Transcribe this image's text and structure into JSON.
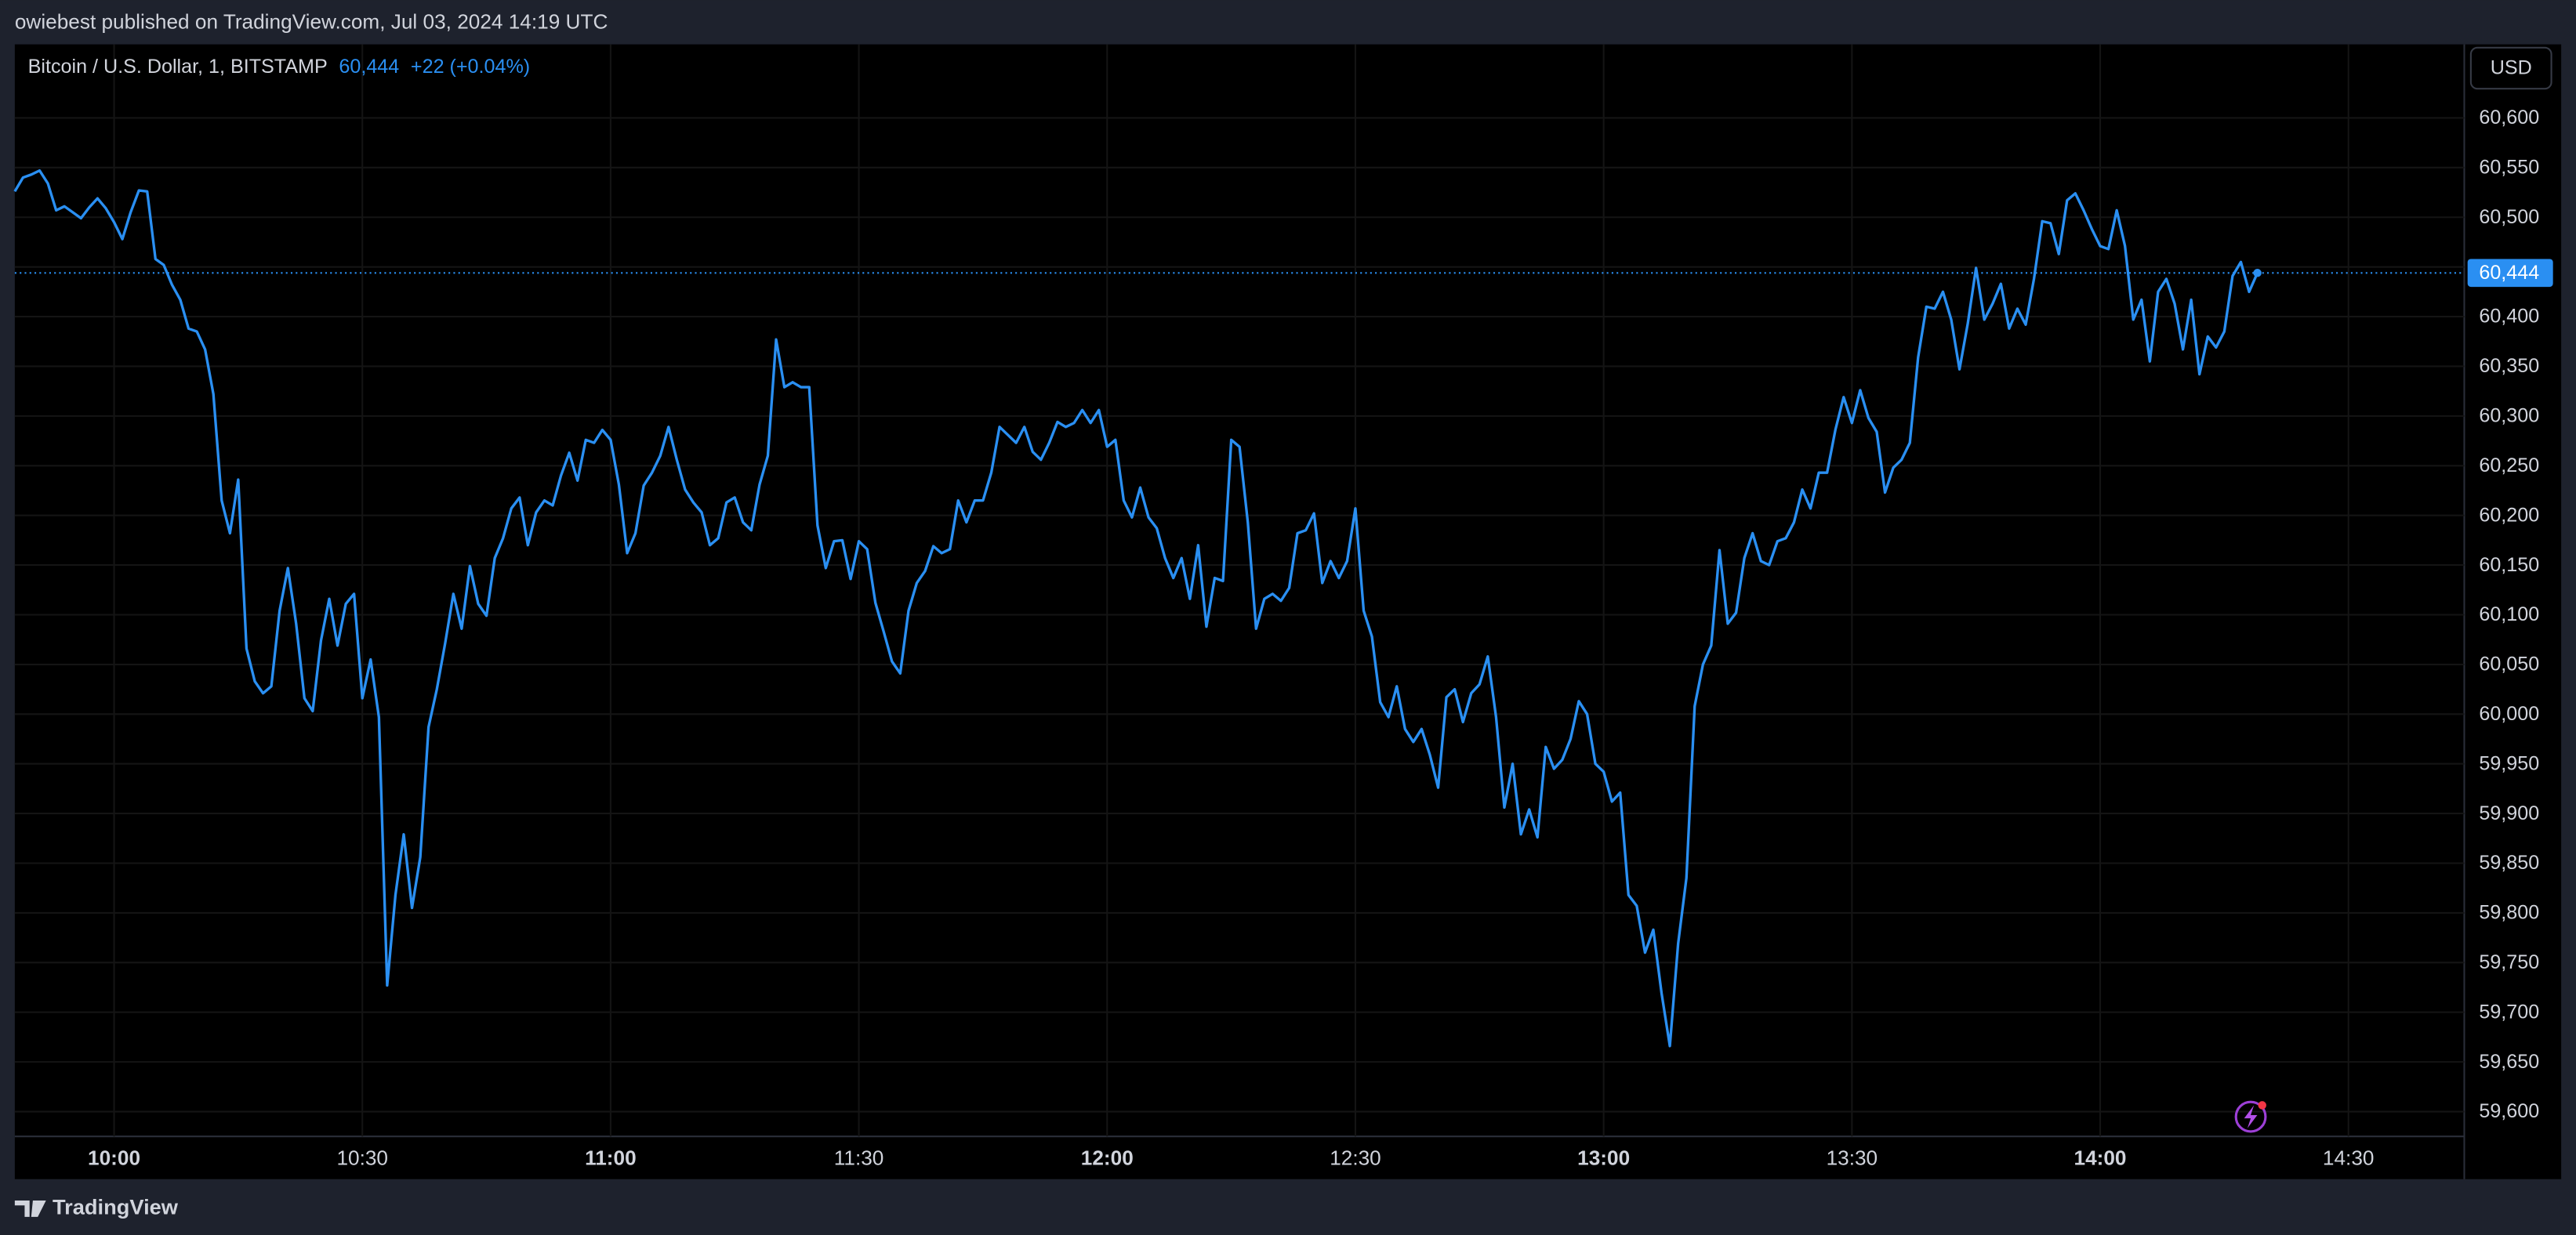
{
  "header": {
    "publisher_line": "owiebest published on TradingView.com, Jul 03, 2024 14:19 UTC"
  },
  "chart_data": {
    "type": "line",
    "title": "Bitcoin / U.S. Dollar, 1, BITSTAMP",
    "last_price": {
      "value": 60444,
      "label": "60,444"
    },
    "change": "+22 (+0.04%)",
    "currency": "USD",
    "color": "#2a8ff2",
    "x": [
      "09:48",
      "09:49",
      "09:50",
      "09:51",
      "09:52",
      "09:53",
      "09:54",
      "09:55",
      "09:56",
      "09:57",
      "09:58",
      "09:59",
      "10:00",
      "10:01",
      "10:02",
      "10:03",
      "10:04",
      "10:05",
      "10:06",
      "10:07",
      "10:08",
      "10:09",
      "10:10",
      "10:11",
      "10:12",
      "10:13",
      "10:14",
      "10:15",
      "10:16",
      "10:17",
      "10:18",
      "10:19",
      "10:20",
      "10:21",
      "10:22",
      "10:23",
      "10:24",
      "10:25",
      "10:26",
      "10:27",
      "10:28",
      "10:29",
      "10:30",
      "10:31",
      "10:32",
      "10:33",
      "10:34",
      "10:35",
      "10:36",
      "10:37",
      "10:38",
      "10:39",
      "10:40",
      "10:41",
      "10:42",
      "10:43",
      "10:44",
      "10:45",
      "10:46",
      "10:47",
      "10:48",
      "10:49",
      "10:50",
      "10:51",
      "10:52",
      "10:53",
      "10:54",
      "10:55",
      "10:56",
      "10:57",
      "10:58",
      "10:59",
      "11:00",
      "11:01",
      "11:02",
      "11:03",
      "11:04",
      "11:05",
      "11:06",
      "11:07",
      "11:08",
      "11:09",
      "11:10",
      "11:11",
      "11:12",
      "11:13",
      "11:14",
      "11:15",
      "11:16",
      "11:17",
      "11:18",
      "11:19",
      "11:20",
      "11:21",
      "11:22",
      "11:23",
      "11:24",
      "11:25",
      "11:26",
      "11:27",
      "11:28",
      "11:29",
      "11:30",
      "11:31",
      "11:32",
      "11:33",
      "11:34",
      "11:35",
      "11:36",
      "11:37",
      "11:38",
      "11:39",
      "11:40",
      "11:41",
      "11:42",
      "11:43",
      "11:44",
      "11:45",
      "11:46",
      "11:47",
      "11:48",
      "11:49",
      "11:50",
      "11:51",
      "11:52",
      "11:53",
      "11:54",
      "11:55",
      "11:56",
      "11:57",
      "11:58",
      "11:59",
      "12:00",
      "12:01",
      "12:02",
      "12:03",
      "12:04",
      "12:05",
      "12:06",
      "12:07",
      "12:08",
      "12:09",
      "12:10",
      "12:11",
      "12:12",
      "12:13",
      "12:14",
      "12:15",
      "12:16",
      "12:17",
      "12:18",
      "12:19",
      "12:20",
      "12:21",
      "12:22",
      "12:23",
      "12:24",
      "12:25",
      "12:26",
      "12:27",
      "12:28",
      "12:29",
      "12:30",
      "12:31",
      "12:32",
      "12:33",
      "12:34",
      "12:35",
      "12:36",
      "12:37",
      "12:38",
      "12:39",
      "12:40",
      "12:41",
      "12:42",
      "12:43",
      "12:44",
      "12:45",
      "12:46",
      "12:47",
      "12:48",
      "12:49",
      "12:50",
      "12:51",
      "12:52",
      "12:53",
      "12:54",
      "12:55",
      "12:56",
      "12:57",
      "12:58",
      "12:59",
      "13:00",
      "13:01",
      "13:02",
      "13:03",
      "13:04",
      "13:05",
      "13:06",
      "13:07",
      "13:08",
      "13:09",
      "13:10",
      "13:11",
      "13:12",
      "13:13",
      "13:14",
      "13:15",
      "13:16",
      "13:17",
      "13:18",
      "13:19",
      "13:20",
      "13:21",
      "13:22",
      "13:23",
      "13:24",
      "13:25",
      "13:26",
      "13:27",
      "13:28",
      "13:29",
      "13:30",
      "13:31",
      "13:32",
      "13:33",
      "13:34",
      "13:35",
      "13:36",
      "13:37",
      "13:38",
      "13:39",
      "13:40",
      "13:41",
      "13:42",
      "13:43",
      "13:44",
      "13:45",
      "13:46",
      "13:47",
      "13:48",
      "13:49",
      "13:50",
      "13:51",
      "13:52",
      "13:53",
      "13:54",
      "13:55",
      "13:56",
      "13:57",
      "13:58",
      "13:59",
      "14:00",
      "14:01",
      "14:02",
      "14:03",
      "14:04",
      "14:05",
      "14:06",
      "14:07",
      "14:08",
      "14:09",
      "14:10",
      "14:11",
      "14:12",
      "14:13",
      "14:14",
      "14:15",
      "14:16",
      "14:17",
      "14:18",
      "14:19"
    ],
    "values": [
      60526,
      60540,
      60543,
      60547,
      60534,
      60507,
      60511,
      60505,
      60499,
      60510,
      60519,
      60509,
      60495,
      60478,
      60505,
      60527,
      60526,
      60458,
      60452,
      60432,
      60417,
      60388,
      60385,
      60367,
      60322,
      60215,
      60182,
      60236,
      60066,
      60033,
      60021,
      60028,
      60104,
      60147,
      60091,
      60016,
      60003,
      60074,
      60116,
      60069,
      60111,
      60121,
      60016,
      60055,
      59997,
      59727,
      59818,
      59879,
      59805,
      59856,
      59987,
      60025,
      60071,
      60121,
      60086,
      60149,
      60111,
      60099,
      60157,
      60177,
      60207,
      60218,
      60170,
      60203,
      60215,
      60210,
      60240,
      60263,
      60235,
      60276,
      60273,
      60286,
      60276,
      60231,
      60162,
      60182,
      60230,
      60243,
      60260,
      60289,
      60256,
      60226,
      60213,
      60203,
      60170,
      60177,
      60213,
      60218,
      60193,
      60185,
      60231,
      60260,
      60377,
      60329,
      60334,
      60329,
      60329,
      60190,
      60147,
      60174,
      60175,
      60136,
      60174,
      60166,
      60112,
      60083,
      60053,
      60041,
      60104,
      60132,
      60144,
      60169,
      60162,
      60166,
      60215,
      60193,
      60215,
      60215,
      60243,
      60289,
      60281,
      60273,
      60289,
      60264,
      60256,
      60273,
      60294,
      60289,
      60293,
      60306,
      60293,
      60306,
      60269,
      60276,
      60215,
      60198,
      60228,
      60198,
      60187,
      60157,
      60137,
      60157,
      60116,
      60170,
      60088,
      60137,
      60134,
      60276,
      60269,
      60193,
      60086,
      60116,
      60121,
      60114,
      60127,
      60182,
      60185,
      60202,
      60132,
      60154,
      60137,
      60154,
      60207,
      60104,
      60078,
      60012,
      59997,
      60028,
      59985,
      59972,
      59985,
      59959,
      59926,
      60017,
      60025,
      59992,
      60021,
      60030,
      60058,
      59997,
      59906,
      59950,
      59879,
      59904,
      59876,
      59967,
      59945,
      59954,
      59975,
      60013,
      60000,
      59950,
      59942,
      59912,
      59921,
      59818,
      59807,
      59760,
      59783,
      59719,
      59666,
      59769,
      59835,
      60008,
      60050,
      60069,
      60165,
      60091,
      60102,
      60157,
      60182,
      60154,
      60150,
      60174,
      60177,
      60193,
      60226,
      60207,
      60243,
      60243,
      60286,
      60319,
      60293,
      60326,
      60298,
      60284,
      60223,
      60248,
      60256,
      60273,
      60359,
      60410,
      60408,
      60425,
      60397,
      60347,
      60393,
      60449,
      60397,
      60413,
      60433,
      60388,
      60408,
      60392,
      60438,
      60496,
      60494,
      60463,
      60517,
      60524,
      60507,
      60488,
      60471,
      60468,
      60507,
      60471,
      60397,
      60417,
      60355,
      60425,
      60438,
      60413,
      60367,
      60417,
      60342,
      60380,
      60369,
      60385,
      60441,
      60455,
      60425,
      60444
    ],
    "xlim": [
      "09:48",
      "14:44"
    ],
    "xticks": [
      "10:00",
      "10:30",
      "11:00",
      "11:30",
      "12:00",
      "12:30",
      "13:00",
      "13:30",
      "14:00",
      "14:30"
    ],
    "ylim": [
      59575,
      60674
    ],
    "yticks": [
      {
        "value": 59600,
        "label": "59,600"
      },
      {
        "value": 59650,
        "label": "59,650"
      },
      {
        "value": 59700,
        "label": "59,700"
      },
      {
        "value": 59750,
        "label": "59,750"
      },
      {
        "value": 59800,
        "label": "59,800"
      },
      {
        "value": 59850,
        "label": "59,850"
      },
      {
        "value": 59900,
        "label": "59,900"
      },
      {
        "value": 59950,
        "label": "59,950"
      },
      {
        "value": 60000,
        "label": "60,000"
      },
      {
        "value": 60050,
        "label": "60,050"
      },
      {
        "value": 60100,
        "label": "60,100"
      },
      {
        "value": 60150,
        "label": "60,150"
      },
      {
        "value": 60200,
        "label": "60,200"
      },
      {
        "value": 60250,
        "label": "60,250"
      },
      {
        "value": 60300,
        "label": "60,300"
      },
      {
        "value": 60350,
        "label": "60,350"
      },
      {
        "value": 60400,
        "label": "60,400"
      },
      {
        "value": 60450,
        "label": "60,450"
      },
      {
        "value": 60500,
        "label": "60,500"
      },
      {
        "value": 60550,
        "label": "60,550"
      },
      {
        "value": 60600,
        "label": "60,600"
      }
    ],
    "grid": true
  },
  "footer": {
    "brand": "TradingView"
  }
}
